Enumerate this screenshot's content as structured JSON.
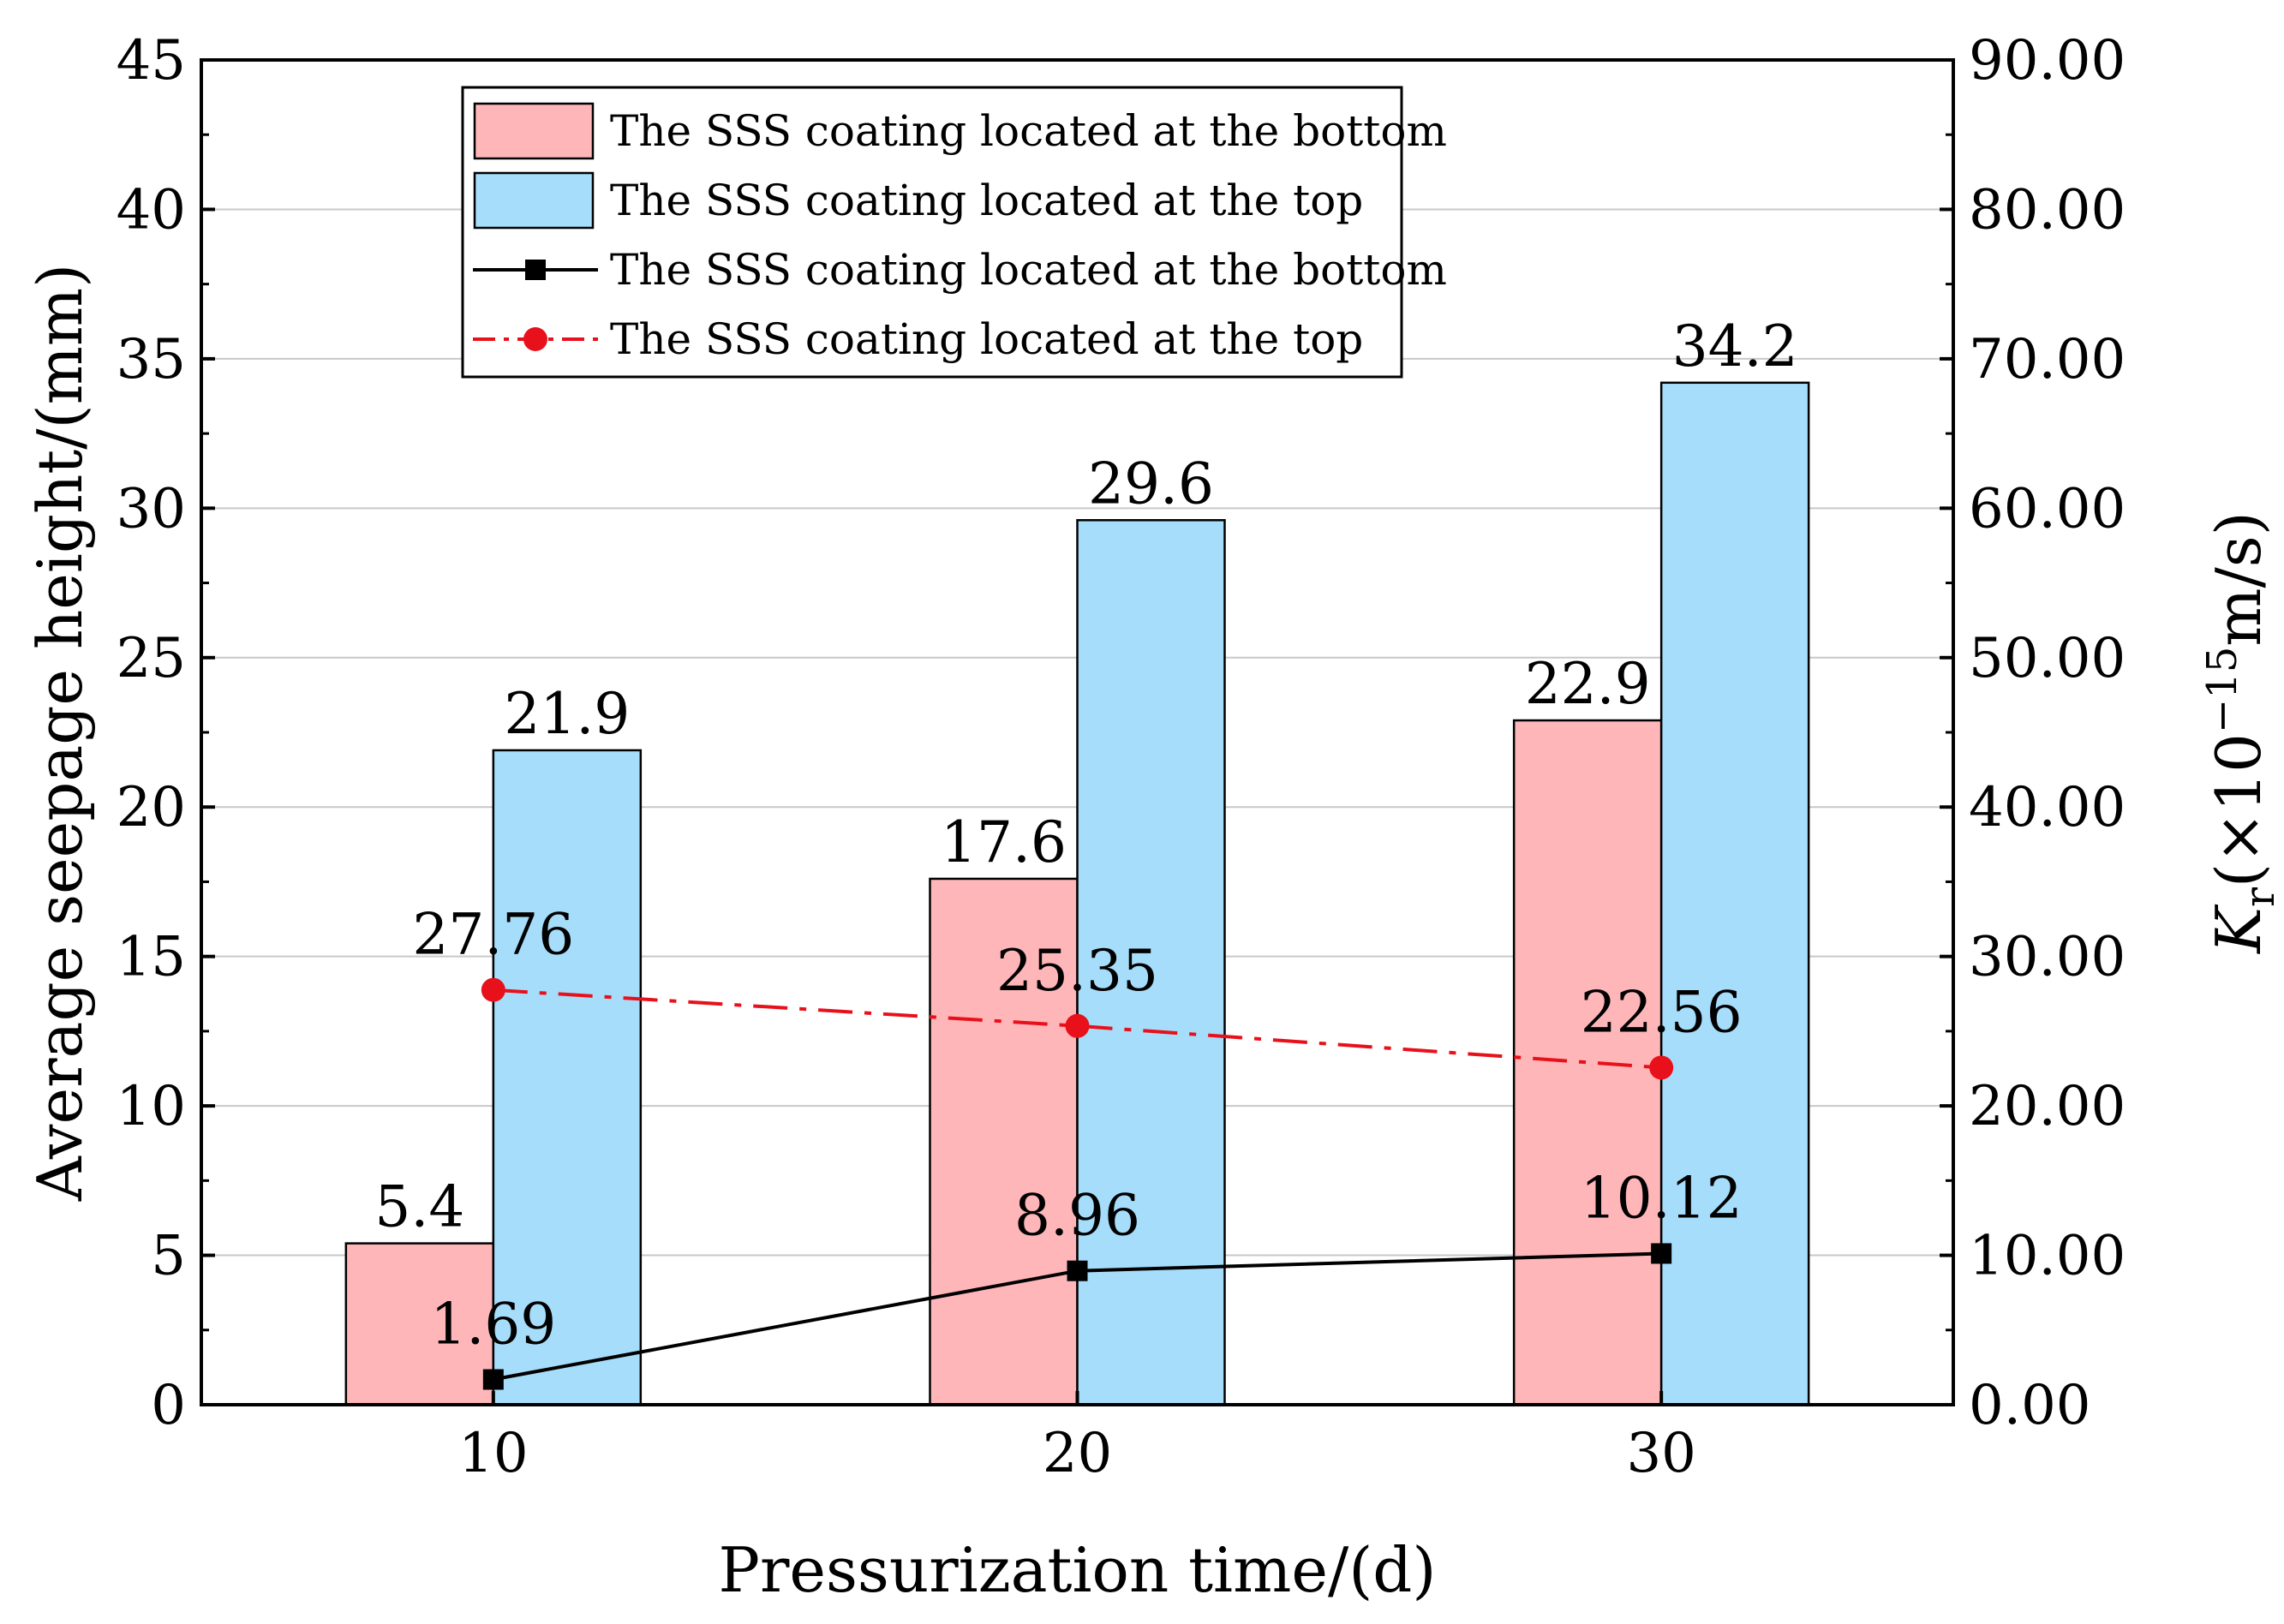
{
  "chart_data": {
    "type": "bar",
    "title": "",
    "xlabel": "Pressurization time/(d)",
    "ylabel": "Average seepage height/(mm)",
    "y2label": {
      "main": "K",
      "sub": "r",
      "rest": "(×10",
      "exp": "−15",
      "unit": "m/s)"
    },
    "categories": [
      "10",
      "20",
      "30"
    ],
    "ylim": [
      0,
      45
    ],
    "yticks": [
      "0",
      "5",
      "10",
      "15",
      "20",
      "25",
      "30",
      "35",
      "40",
      "45"
    ],
    "y2lim": [
      0,
      90
    ],
    "y2ticks": [
      "0.00",
      "10.00",
      "20.00",
      "30.00",
      "40.00",
      "50.00",
      "60.00",
      "70.00",
      "80.00",
      "90.00"
    ],
    "grid": true,
    "legend_position": "top-left",
    "bar_series": [
      {
        "name": "The SSS coating located at the bottom",
        "values": [
          5.4,
          17.6,
          22.9
        ],
        "labels": [
          "5.4",
          "17.6",
          "22.9"
        ],
        "color": "#FFB6B9"
      },
      {
        "name": "The SSS coating located at the top",
        "values": [
          21.9,
          29.6,
          34.2
        ],
        "labels": [
          "21.9",
          "29.6",
          "34.2"
        ],
        "color": "#A6DDFB"
      }
    ],
    "line_series": [
      {
        "name": "The SSS coating located at the bottom",
        "axis": "right",
        "values": [
          1.69,
          8.96,
          10.12
        ],
        "labels": [
          "1.69",
          "8.96",
          "10.12"
        ],
        "color": "#000000",
        "marker": "square",
        "dash": "solid"
      },
      {
        "name": "The SSS coating located at the top",
        "axis": "right",
        "values": [
          27.76,
          25.35,
          22.56
        ],
        "labels": [
          "27.76",
          "25.35",
          "22.56"
        ],
        "color": "#E8101A",
        "marker": "circle",
        "dash": "dash-dot"
      }
    ]
  }
}
